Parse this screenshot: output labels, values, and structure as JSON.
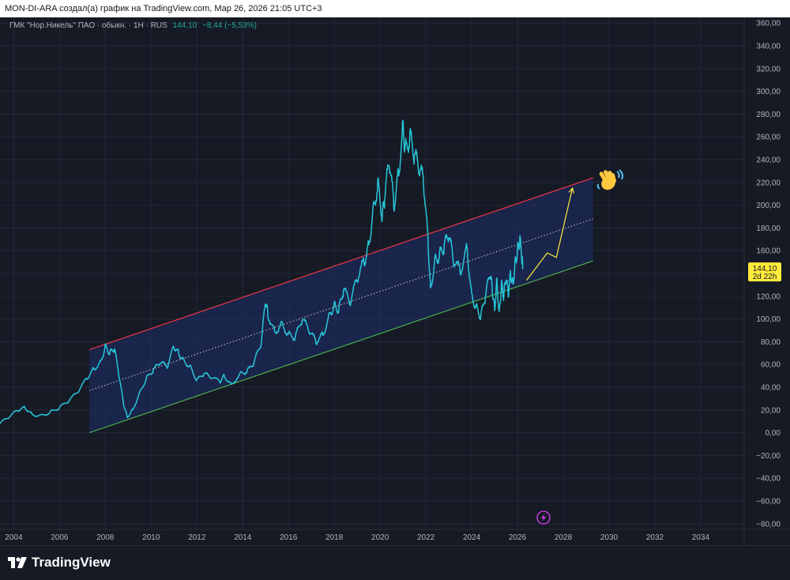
{
  "header": {
    "title": "MON-DI-ARA создал(а) график на TradingView.com, Мар 26, 2026 21:05 UTC+3"
  },
  "legend": {
    "symbol": "ГМК \"Нор.Никель\" ПАО · обыкн. · 1H · RUS",
    "price": "144,10",
    "change": "−8,44 (−5,53%)"
  },
  "price_badge": {
    "price": "144,10",
    "countdown": "2d 22h"
  },
  "footer": {
    "brand": "TradingView"
  },
  "icons": {
    "flash": "lightning-icon",
    "emoji": "waving-hand-icon",
    "logo": "tradingview-logo-icon"
  },
  "colors": {
    "background": "#161a25",
    "price_line": "#26c6da",
    "channel_upper": "#f23645",
    "channel_lower": "#4caf50",
    "channel_fill": "#1f2f6b",
    "projection": "#ffeb3b",
    "badge": "#ffeb3b",
    "flash": "#e040fb"
  },
  "chart_data": {
    "type": "line",
    "title": "",
    "xlabel": "",
    "ylabel": "",
    "xlim": [
      2003.4,
      2035.9
    ],
    "ylim": [
      -85,
      365
    ],
    "x_ticks": [
      "2004",
      "2006",
      "2008",
      "2010",
      "2012",
      "2014",
      "2016",
      "2018",
      "2020",
      "2022",
      "2024",
      "2026",
      "2028",
      "2030",
      "2032",
      "2034"
    ],
    "y_ticks": [
      "360,00",
      "340,00",
      "320,00",
      "300,00",
      "280,00",
      "260,00",
      "240,00",
      "220,00",
      "200,00",
      "180,00",
      "160,00",
      "140,00",
      "120,00",
      "100,00",
      "80,00",
      "60,00",
      "40,00",
      "20,00",
      "0,00",
      "−20,00",
      "−40,00",
      "−60,00",
      "−80,00"
    ],
    "grid": true,
    "series": [
      {
        "x": [
          2003.4,
          2003.8,
          2004.2,
          2004.5,
          2004.8,
          2005.2,
          2005.6,
          2006.0,
          2006.4,
          2006.8,
          2007.2,
          2007.5,
          2007.8,
          2008.0,
          2008.2,
          2008.4,
          2008.6,
          2008.8,
          2008.95,
          2009.2,
          2009.5,
          2009.8,
          2010.1,
          2010.4,
          2010.7,
          2011.0,
          2011.2,
          2011.4,
          2011.7,
          2012.0,
          2012.3,
          2012.6,
          2013.0,
          2013.2,
          2013.5,
          2013.9,
          2014.2,
          2014.5,
          2014.8,
          2015.0,
          2015.1,
          2015.4,
          2015.7,
          2016.0,
          2016.3,
          2016.6,
          2016.9,
          2017.2,
          2017.5,
          2017.8,
          2018.0,
          2018.2,
          2018.4,
          2018.7,
          2019.0,
          2019.3,
          2019.5,
          2019.7,
          2019.9,
          2020.1,
          2020.2,
          2020.4,
          2020.6,
          2020.8,
          2021.0,
          2021.1,
          2021.3,
          2021.5,
          2021.7,
          2021.9,
          2022.1,
          2022.2,
          2022.4,
          2022.6,
          2022.8,
          2023.0,
          2023.2,
          2023.5,
          2023.8,
          2024.0,
          2024.2,
          2024.4,
          2024.6,
          2024.8,
          2024.9,
          2025.0,
          2025.1,
          2025.2,
          2025.3,
          2025.4,
          2025.5,
          2025.6,
          2025.7,
          2025.8,
          2025.9,
          2026.0,
          2026.1,
          2026.2,
          2026.23
        ],
        "y": [
          8,
          14,
          20,
          22,
          16,
          15,
          18,
          22,
          28,
          36,
          48,
          56,
          62,
          76,
          70,
          74,
          50,
          25,
          14,
          20,
          35,
          48,
          55,
          62,
          58,
          76,
          70,
          64,
          58,
          46,
          52,
          49,
          45,
          50,
          42,
          52,
          54,
          62,
          78,
          116,
          104,
          88,
          96,
          86,
          84,
          100,
          90,
          80,
          86,
          104,
          112,
          108,
          126,
          114,
          136,
          150,
          164,
          196,
          218,
          190,
          206,
          240,
          200,
          226,
          270,
          248,
          260,
          244,
          232,
          222,
          166,
          126,
          152,
          156,
          164,
          174,
          152,
          142,
          162,
          120,
          110,
          102,
          120,
          140,
          126,
          108,
          134,
          104,
          130,
          120,
          136,
          122,
          140,
          130,
          150,
          160,
          170,
          152,
          145
        ]
      },
      {
        "x": [
          2007.3,
          2029.3
        ],
        "y": [
          73,
          224
        ]
      },
      {
        "x": [
          2007.3,
          2029.3
        ],
        "y": [
          0,
          151
        ]
      },
      {
        "x": [
          2007.3,
          2029.3
        ],
        "y": [
          37,
          188
        ]
      },
      {
        "x": [
          2026.4,
          2027.3,
          2027.7,
          2028.4
        ],
        "y": [
          134,
          158,
          154,
          215
        ]
      }
    ]
  }
}
